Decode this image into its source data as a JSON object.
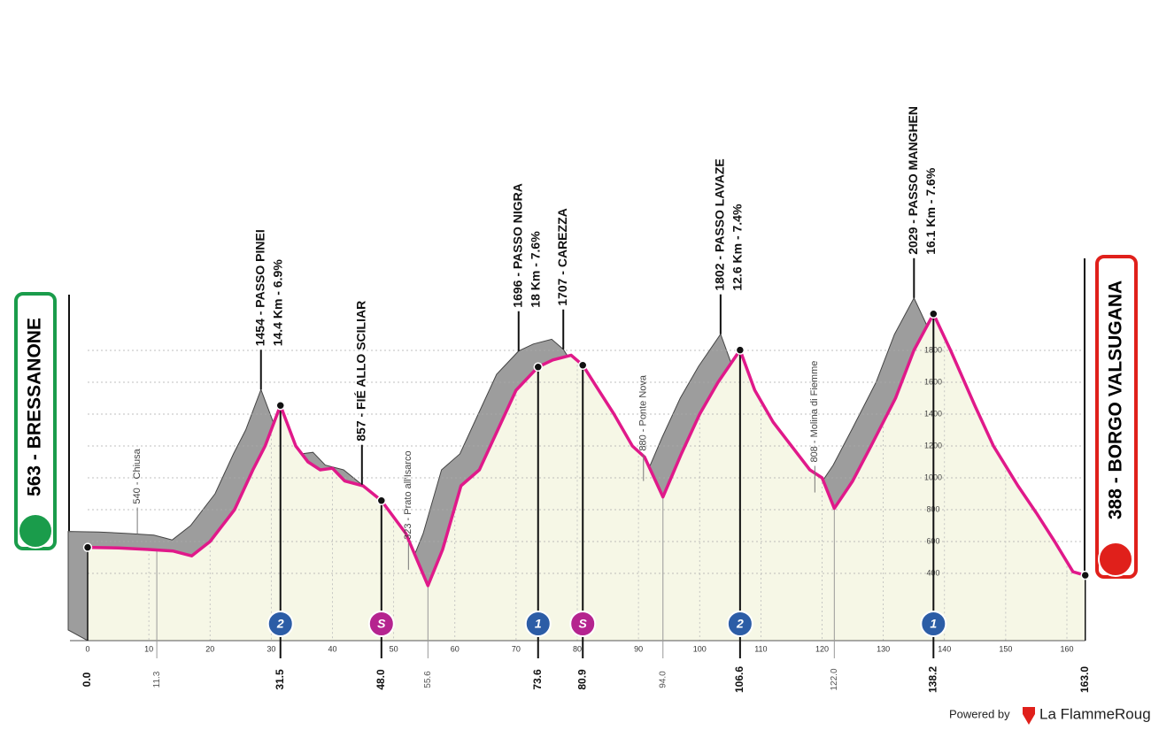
{
  "chart_data": {
    "type": "area",
    "start": "563 - BRESSANONE",
    "finish": "388 - BORGO VALSUGANA",
    "x": [
      0,
      5,
      10,
      14,
      16,
      17,
      20,
      24,
      27,
      29,
      31.5,
      34,
      36,
      38,
      40,
      42,
      45,
      48,
      52,
      55.6,
      58,
      61,
      64,
      67,
      70,
      73.6,
      76,
      79,
      80.9,
      83,
      86,
      89,
      91,
      94,
      97,
      100,
      103,
      106.6,
      109,
      112,
      115,
      118,
      120,
      122,
      125,
      128,
      132,
      135,
      138.2,
      141,
      145,
      148,
      152,
      155,
      158,
      161,
      163
    ],
    "values": [
      563,
      560,
      550,
      540,
      520,
      510,
      600,
      800,
      1050,
      1200,
      1454,
      1200,
      1100,
      1050,
      1060,
      980,
      950,
      857,
      650,
      323,
      550,
      950,
      1050,
      1300,
      1550,
      1696,
      1740,
      1770,
      1707,
      1580,
      1400,
      1200,
      1130,
      880,
      1150,
      1400,
      1600,
      1802,
      1550,
      1350,
      1200,
      1050,
      1000,
      808,
      980,
      1200,
      1500,
      1800,
      2029,
      1800,
      1450,
      1200,
      950,
      780,
      600,
      410,
      388
    ],
    "color": "#e0198a",
    "fill_color": "#f6f7e6",
    "shade_color": "#9d9d9d",
    "xlim": [
      0,
      163
    ],
    "ylim": [
      0,
      2200
    ],
    "xticks": [
      0,
      10,
      20,
      30,
      40,
      50,
      60,
      70,
      80,
      90,
      100,
      110,
      120,
      130,
      140,
      150,
      160
    ],
    "yticks": [
      400,
      600,
      800,
      1000,
      1200,
      1400,
      1600,
      1800
    ],
    "grid": true,
    "km_markers": [
      {
        "value": 0,
        "label": "0.0"
      },
      11.3,
      31.5,
      {
        "value": 48,
        "label": "48.0"
      },
      55.6,
      73.6,
      80.9,
      {
        "value": 94,
        "label": "94.0"
      },
      106.6,
      {
        "value": 122,
        "label": "122.0"
      },
      138.2,
      {
        "value": 163,
        "label": "163.0"
      }
    ],
    "marker_styles": [
      "end",
      "minor",
      "major",
      "major",
      "minor",
      "major",
      "major",
      "minor",
      "major",
      "minor",
      "major",
      "end"
    ],
    "annotations": [
      {
        "at": 11.3,
        "lines": [
          "540 - Chiusa"
        ],
        "style": "place"
      },
      {
        "at": 31.5,
        "lines": [
          "1454 - PASSO PINEI",
          "14.4 Km - 6.9%"
        ],
        "style": "climb"
      },
      {
        "at": 48,
        "lines": [
          "857 - FIÉ ALLO SCILIAR"
        ],
        "style": "climb"
      },
      {
        "at": 55.6,
        "lines": [
          "323 - Prato all'Isarco"
        ],
        "style": "place"
      },
      {
        "at": 73.6,
        "lines": [
          "1696 - PASSO NIGRA",
          "18 Km - 7.6%"
        ],
        "style": "climb"
      },
      {
        "at": 80.9,
        "lines": [
          "1707 - CAREZZA"
        ],
        "style": "climb"
      },
      {
        "at": 94,
        "lines": [
          "880 - Ponte Nova"
        ],
        "style": "place"
      },
      {
        "at": 106.6,
        "lines": [
          "1802 - PASSO LAVAZE",
          "12.6 Km - 7.4%"
        ],
        "style": "climb"
      },
      {
        "at": 122,
        "lines": [
          "808 - Molina di Fiemme"
        ],
        "style": "place"
      },
      {
        "at": 138.2,
        "lines": [
          "2029 - PASSO MANGHEN",
          "16.1 Km - 7.6%"
        ],
        "style": "climb"
      }
    ],
    "badges": [
      {
        "at": 31.5,
        "label": "2",
        "color": "#2c5da6"
      },
      {
        "at": 48,
        "label": "S",
        "color": "#b5248f"
      },
      {
        "at": 73.6,
        "label": "1",
        "color": "#2c5da6"
      },
      {
        "at": 80.9,
        "label": "S",
        "color": "#b5248f"
      },
      {
        "at": 106.6,
        "label": "2",
        "color": "#2c5da6"
      },
      {
        "at": 138.2,
        "label": "1",
        "color": "#2c5da6"
      }
    ]
  },
  "footer": {
    "powered": "Powered by",
    "brand": "La FlammeRouge"
  }
}
